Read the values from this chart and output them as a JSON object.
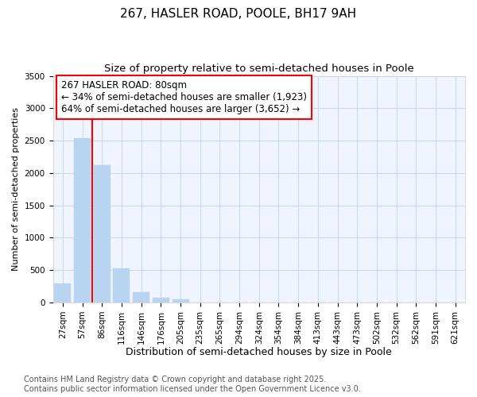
{
  "title": "267, HASLER ROAD, POOLE, BH17 9AH",
  "subtitle": "Size of property relative to semi-detached houses in Poole",
  "xlabel": "Distribution of semi-detached houses by size in Poole",
  "ylabel": "Number of semi-detached properties",
  "categories": [
    "27sqm",
    "57sqm",
    "86sqm",
    "116sqm",
    "146sqm",
    "176sqm",
    "205sqm",
    "235sqm",
    "265sqm",
    "294sqm",
    "324sqm",
    "354sqm",
    "384sqm",
    "413sqm",
    "443sqm",
    "473sqm",
    "502sqm",
    "532sqm",
    "562sqm",
    "591sqm",
    "621sqm"
  ],
  "values": [
    300,
    2540,
    2120,
    525,
    155,
    75,
    50,
    0,
    0,
    0,
    0,
    0,
    0,
    0,
    0,
    0,
    0,
    0,
    0,
    0,
    0
  ],
  "bar_color": "#b8d4f0",
  "redline_x": 1.5,
  "annotation_line1": "267 HASLER ROAD: 80sqm",
  "annotation_line2": "← 34% of semi-detached houses are smaller (1,923)",
  "annotation_line3": "64% of semi-detached houses are larger (3,652) →",
  "ylim": [
    0,
    3500
  ],
  "yticks": [
    0,
    500,
    1000,
    1500,
    2000,
    2500,
    3000,
    3500
  ],
  "bg_color": "#f0f4ff",
  "grid_color": "#c8d8f8",
  "footnote": "Contains HM Land Registry data © Crown copyright and database right 2025.\nContains public sector information licensed under the Open Government Licence v3.0.",
  "title_fontsize": 11,
  "subtitle_fontsize": 9.5,
  "xlabel_fontsize": 9,
  "ylabel_fontsize": 8,
  "tick_fontsize": 7.5,
  "annotation_fontsize": 8.5,
  "footnote_fontsize": 7
}
